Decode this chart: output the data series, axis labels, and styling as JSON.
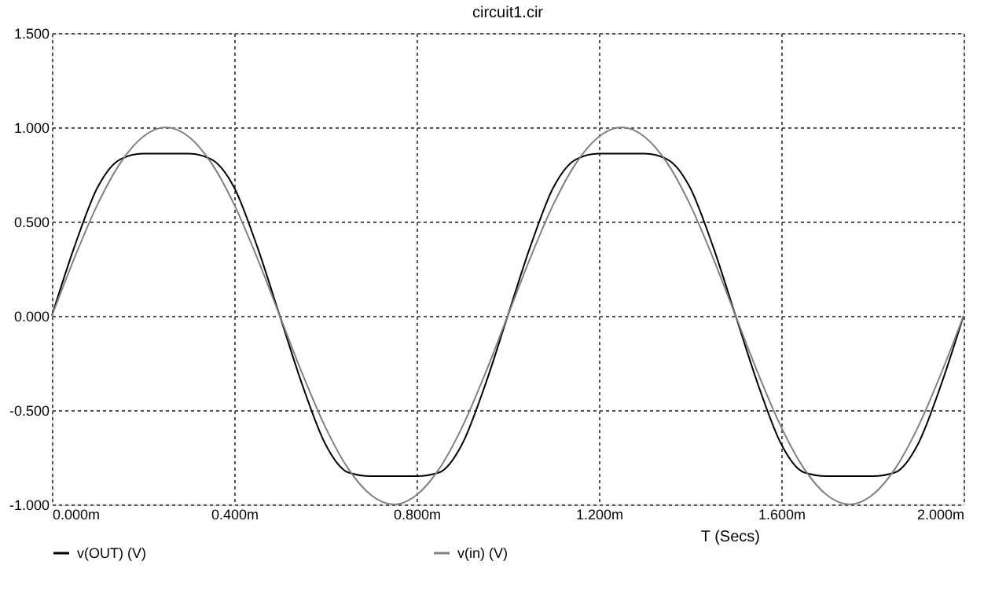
{
  "chart_data": {
    "type": "line",
    "title": "circuit1.cir",
    "xlabel": "T (Secs)",
    "x": [
      0,
      0.05,
      0.1,
      0.15,
      0.2,
      0.25,
      0.3,
      0.35,
      0.4,
      0.45,
      0.5,
      0.55,
      0.6,
      0.65,
      0.7,
      0.75,
      0.8,
      0.85,
      0.9,
      0.95,
      1.0,
      1.05,
      1.1,
      1.15,
      1.2,
      1.25,
      1.3,
      1.35,
      1.4,
      1.45,
      1.5,
      1.55,
      1.6,
      1.65,
      1.7,
      1.75,
      1.8,
      1.85,
      1.9,
      1.95,
      2.0
    ],
    "series": [
      {
        "name": "v(OUT) (V)",
        "color": "#000000",
        "values": [
          0,
          0.37,
          0.68,
          0.83,
          0.86,
          0.86,
          0.86,
          0.83,
          0.68,
          0.37,
          0,
          -0.37,
          -0.68,
          -0.83,
          -0.85,
          -0.85,
          -0.85,
          -0.83,
          -0.68,
          -0.37,
          0,
          0.37,
          0.68,
          0.83,
          0.86,
          0.86,
          0.86,
          0.83,
          0.68,
          0.37,
          0,
          -0.37,
          -0.68,
          -0.83,
          -0.85,
          -0.85,
          -0.85,
          -0.83,
          -0.68,
          -0.37,
          0
        ]
      },
      {
        "name": "v(in) (V)",
        "color": "#808080",
        "values": [
          0,
          0.31,
          0.59,
          0.81,
          0.95,
          1.0,
          0.95,
          0.81,
          0.59,
          0.31,
          0,
          -0.31,
          -0.59,
          -0.81,
          -0.95,
          -1.0,
          -0.95,
          -0.81,
          -0.59,
          -0.31,
          0,
          0.31,
          0.59,
          0.81,
          0.95,
          1.0,
          0.95,
          0.81,
          0.59,
          0.31,
          0,
          -0.31,
          -0.59,
          -0.81,
          -0.95,
          -1.0,
          -0.95,
          -0.81,
          -0.59,
          -0.31,
          0
        ]
      }
    ],
    "xlim": [
      0,
      2.0
    ],
    "xticks": [
      {
        "value": 0,
        "label": "0.000m"
      },
      {
        "value": 0.4,
        "label": "0.400m"
      },
      {
        "value": 0.8,
        "label": "0.800m"
      },
      {
        "value": 1.2,
        "label": "1.200m"
      },
      {
        "value": 1.6,
        "label": "1.600m"
      },
      {
        "value": 2.0,
        "label": "2.000m"
      }
    ],
    "ylim": [
      -1.0,
      1.5
    ],
    "yticks": [
      {
        "value": -1.0,
        "label": "-1.000"
      },
      {
        "value": -0.5,
        "label": "-0.500"
      },
      {
        "value": 0,
        "label": "0.000"
      },
      {
        "value": 0.5,
        "label": "0.500"
      },
      {
        "value": 1.0,
        "label": "1.000"
      },
      {
        "value": 1.5,
        "label": "1.500"
      }
    ],
    "grid": true,
    "legend": "bottom left",
    "line_style": "solid",
    "marker": "none"
  }
}
